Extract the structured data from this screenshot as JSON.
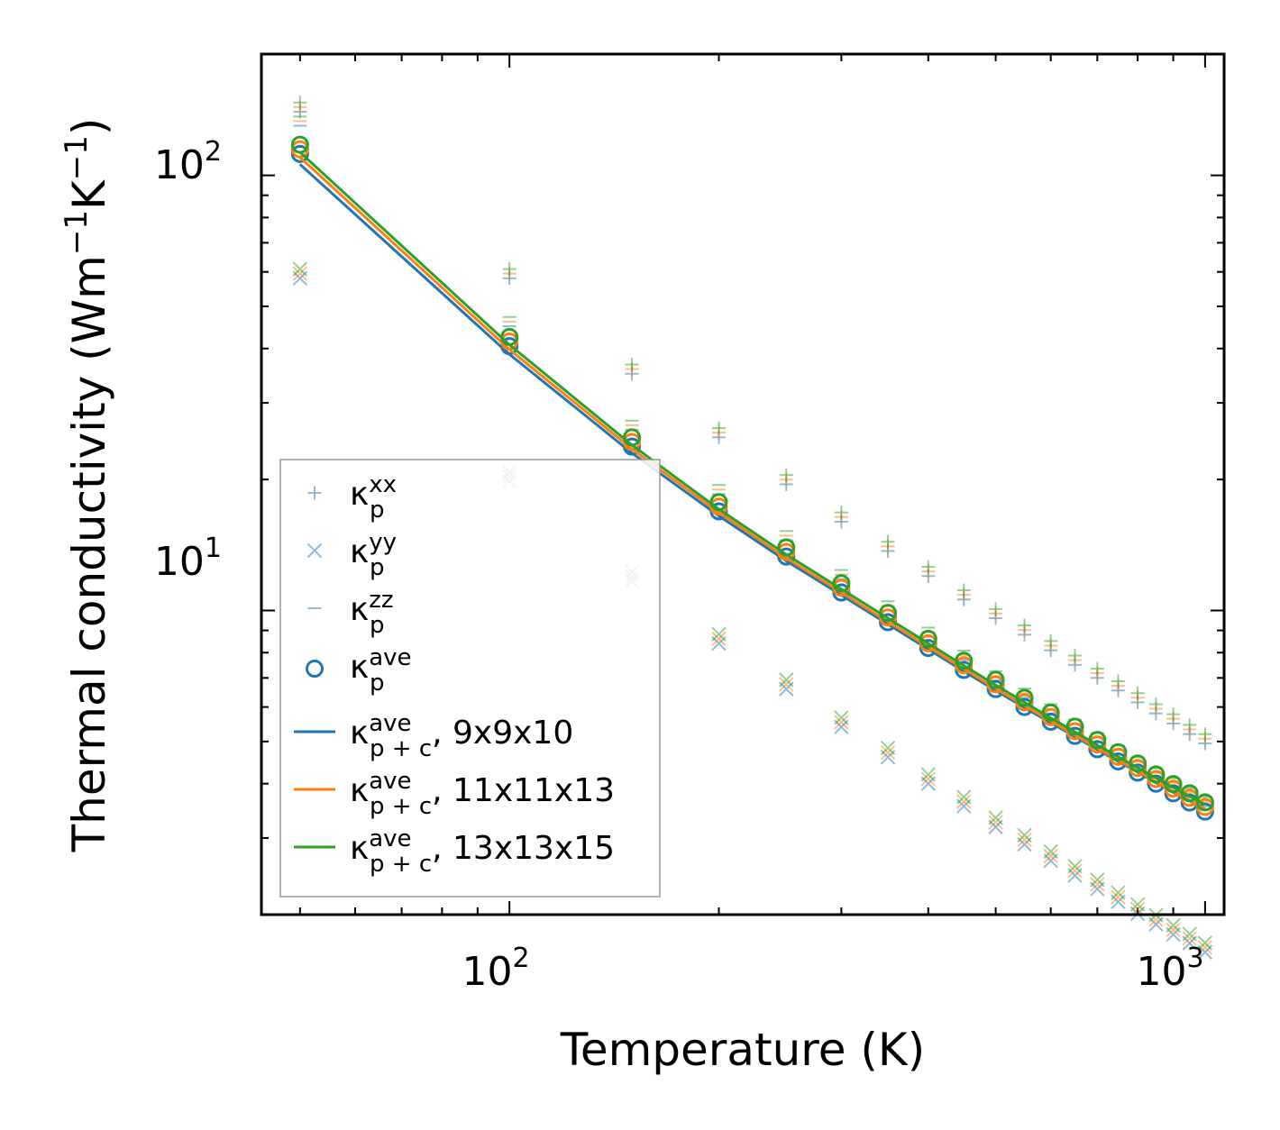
{
  "chart_data": {
    "type": "scatter",
    "title": "",
    "xlabel": "Temperature (K)",
    "ylabel": "Thermal conductivity (Wm",
    "ylabel_unit_tail": ")",
    "ylabel_sup1": "−1",
    "ylabel_mid": "K",
    "ylabel_sup2": "−1",
    "xscale": "log",
    "yscale": "log",
    "xlim": [
      44,
      1065
    ],
    "ylim": [
      2.0,
      190
    ],
    "x_major_ticks": [
      {
        "base": "10",
        "exp": "2",
        "value": 100
      },
      {
        "base": "10",
        "exp": "3",
        "value": 1000
      }
    ],
    "y_major_ticks": [
      {
        "base": "10",
        "exp": "1",
        "value": 10
      },
      {
        "base": "10",
        "exp": "2",
        "value": 100
      }
    ],
    "x": [
      50,
      100,
      150,
      200,
      250,
      300,
      350,
      400,
      450,
      500,
      550,
      600,
      650,
      700,
      750,
      800,
      850,
      900,
      950,
      1000
    ],
    "colors": {
      "blue": "#1f77b4",
      "orange": "#ff7f0e",
      "green": "#2ca02c"
    },
    "series": [
      {
        "name": "kp_xx",
        "marker": "plus",
        "alpha": 0.5,
        "values": [
          140,
          58,
          35,
          25,
          19.5,
          16,
          13.7,
          12,
          10.6,
          9.6,
          8.8,
          8.1,
          7.5,
          7.0,
          6.55,
          6.15,
          5.8,
          5.5,
          5.2,
          4.95
        ]
      },
      {
        "name": "kp_yy",
        "marker": "x",
        "alpha": 0.5,
        "values": [
          58,
          19.8,
          11.7,
          8.4,
          6.6,
          5.4,
          4.6,
          4.0,
          3.55,
          3.18,
          2.9,
          2.66,
          2.46,
          2.29,
          2.14,
          2.01,
          1.9,
          1.8,
          1.72,
          1.64
        ]
      },
      {
        "name": "kp_zz",
        "marker": "hline",
        "alpha": 0.5,
        "values": [
          130,
          45,
          26,
          18.5,
          14.5,
          11.8,
          10.0,
          8.7,
          7.7,
          6.9,
          6.3,
          5.8,
          5.35,
          4.98,
          4.66,
          4.38,
          4.13,
          3.92,
          3.72,
          3.55
        ]
      },
      {
        "name": "kp_ave",
        "marker": "circle",
        "alpha": 1,
        "values": [
          112,
          40.5,
          23.8,
          16.9,
          13.3,
          11.0,
          9.4,
          8.2,
          7.3,
          6.6,
          6.0,
          5.55,
          5.15,
          4.8,
          4.5,
          4.24,
          4.0,
          3.8,
          3.62,
          3.45
        ]
      },
      {
        "name": "kpc_9x9x10",
        "type": "line",
        "color": "blue",
        "values": [
          106,
          38.8,
          23.0,
          16.5,
          13.0,
          10.85,
          9.3,
          8.15,
          7.25,
          6.55,
          5.98,
          5.52,
          5.13,
          4.79,
          4.5,
          4.25,
          4.02,
          3.82,
          3.65,
          3.49
        ]
      },
      {
        "name": "kpc_11x11x13",
        "type": "line",
        "color": "orange",
        "values": [
          110,
          39.8,
          23.5,
          16.8,
          13.2,
          11.0,
          9.42,
          8.25,
          7.34,
          6.62,
          6.04,
          5.57,
          5.17,
          4.83,
          4.53,
          4.27,
          4.04,
          3.84,
          3.66,
          3.5
        ]
      },
      {
        "name": "kpc_13x13x15",
        "type": "line",
        "color": "green",
        "values": [
          113,
          40.8,
          24.0,
          17.1,
          13.45,
          11.2,
          9.6,
          8.4,
          7.47,
          6.74,
          6.15,
          5.66,
          5.26,
          4.91,
          4.61,
          4.35,
          4.12,
          3.92,
          3.74,
          3.58
        ]
      }
    ],
    "series_offsets": {
      "blue": 1.0,
      "orange": 1.025,
      "green": 1.05
    },
    "legend": {
      "placement": "lower-left",
      "entries": [
        {
          "marker": "plus",
          "alpha": 0.5,
          "base": "κ",
          "sup": "xx",
          "sub": "p",
          "suffix": ""
        },
        {
          "marker": "x",
          "alpha": 0.5,
          "base": "κ",
          "sup": "yy",
          "sub": "p",
          "suffix": ""
        },
        {
          "marker": "hline",
          "alpha": 0.5,
          "base": "κ",
          "sup": "zz",
          "sub": "p",
          "suffix": ""
        },
        {
          "marker": "circle",
          "alpha": 1,
          "base": "κ",
          "sup": "ave",
          "sub": "p",
          "suffix": ""
        },
        {
          "marker": "line",
          "color": "blue",
          "base": "κ",
          "sup": "ave",
          "sub": "p + c",
          "suffix": ", 9x9x10"
        },
        {
          "marker": "line",
          "color": "orange",
          "base": "κ",
          "sup": "ave",
          "sub": "p + c",
          "suffix": ", 11x11x13"
        },
        {
          "marker": "line",
          "color": "green",
          "base": "κ",
          "sup": "ave",
          "sub": "p + c",
          "suffix": ", 13x13x15"
        }
      ]
    }
  }
}
